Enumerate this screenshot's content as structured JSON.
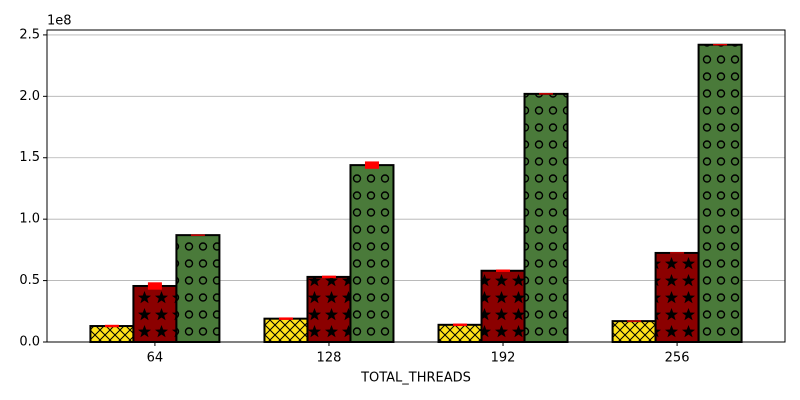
{
  "chart_data": {
    "type": "bar",
    "x_label": "TOTAL_THREADS",
    "y_offset_label": "1e8",
    "categories": [
      "64",
      "128",
      "192",
      "256"
    ],
    "series": [
      {
        "color": "#ffe119",
        "hatch": "crosshatch",
        "values": [
          13000000,
          19000000,
          14000000,
          17000000
        ],
        "errors": [
          1000000,
          1000000,
          1000000,
          500000
        ]
      },
      {
        "color": "#8b0000",
        "hatch": "stars",
        "values": [
          45600000,
          53000000,
          58000000,
          72500000
        ],
        "errors": [
          3000000,
          1000000,
          1000000,
          500000
        ]
      },
      {
        "color": "#4a7a3a",
        "hatch": "circles",
        "values": [
          87000000,
          144000000,
          202000000,
          242000000
        ],
        "errors": [
          500000,
          3000000,
          500000,
          500000
        ]
      }
    ],
    "error_color": "#ff0000",
    "ylim": [
      0,
      254000000
    ],
    "yticks": [
      {
        "value": 0,
        "label": "0.0"
      },
      {
        "value": 50000000,
        "label": "0.5"
      },
      {
        "value": 100000000,
        "label": "1.0"
      },
      {
        "value": 150000000,
        "label": "1.5"
      },
      {
        "value": 200000000,
        "label": "2.0"
      },
      {
        "value": 250000000,
        "label": "2.5"
      }
    ],
    "grid": true
  }
}
